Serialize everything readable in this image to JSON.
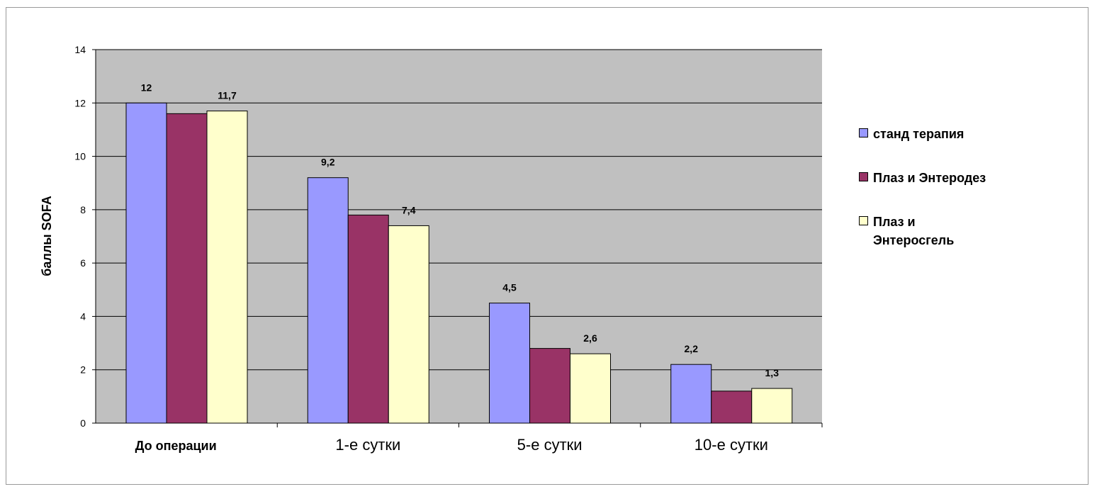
{
  "chart_data": {
    "type": "bar",
    "title": "",
    "xlabel": "",
    "ylabel": "баллы SOFA",
    "ylim": [
      0,
      14
    ],
    "yticks": [
      "0",
      "2",
      "4",
      "6",
      "8",
      "10",
      "12",
      "14"
    ],
    "grid": true,
    "legend_position": "right",
    "categories": [
      "До операции",
      "1-е сутки",
      "5-е сутки",
      "10-е сутки"
    ],
    "series": [
      {
        "name": "станд терапия",
        "color": "#9999ff",
        "values": [
          12,
          9.2,
          4.5,
          2.2
        ],
        "labels": [
          "12",
          "9,2",
          "4,5",
          "2,2"
        ]
      },
      {
        "name": "Плаз и Энтеродез",
        "color": "#993366",
        "values": [
          11.6,
          7.8,
          2.8,
          1.2
        ],
        "labels": [
          "",
          "",
          "",
          ""
        ]
      },
      {
        "name": "Плаз и Энтеросгель",
        "color": "#ffffcc",
        "values": [
          11.7,
          7.4,
          2.6,
          1.3
        ],
        "labels": [
          "11,7",
          "7,4",
          "2,6",
          "1,3"
        ]
      }
    ],
    "plot_background": "#c0c0c0"
  }
}
